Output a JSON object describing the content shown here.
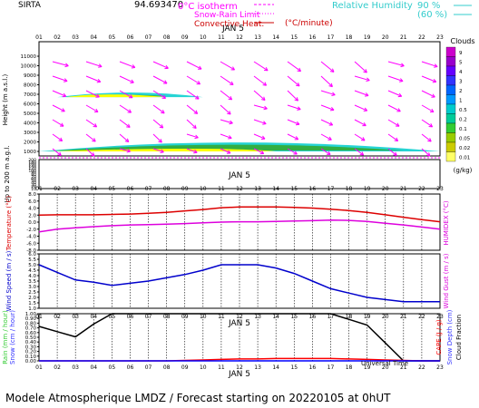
{
  "header": {
    "site": "SIRTA",
    "coord": "94.693470",
    "legend_0c": "0°C isotherm",
    "legend_snow": "Snow-Rain Limit",
    "legend_conv": "Convective Heat.",
    "legend_conv_unit": "(°C/minute)",
    "legend_rh": "Relative Humidity",
    "rh_90": "90 %",
    "rh_60": "(60 %)",
    "date": "JAN 5"
  },
  "hours": [
    "01",
    "02",
    "03",
    "04",
    "05",
    "06",
    "07",
    "08",
    "09",
    "10",
    "11",
    "12",
    "13",
    "14",
    "15",
    "16",
    "17",
    "18",
    "19",
    "20",
    "21",
    "22",
    "23"
  ],
  "panel1": {
    "ylabel": "Height (m a.s.l.)",
    "yticks": [
      "1000",
      "2000",
      "3000",
      "4000",
      "5000",
      "6000",
      "7000",
      "8000",
      "9000",
      "10000",
      "11000"
    ],
    "ylabel_low": "Up to 200 m a.g.l.",
    "yticks_low": [
      "10",
      "20",
      "30",
      "40",
      "50",
      "60",
      "70",
      "80",
      "90",
      "100",
      "120",
      "140",
      "160",
      "180",
      "200"
    ],
    "clouds_title": "Clouds",
    "clouds_unit": "(g/kg)",
    "clouds_levels": [
      "9",
      "5",
      "4",
      "3",
      "2",
      "1",
      "0.5",
      "0.2",
      "0.1",
      "0.05",
      "0.02",
      "0.01"
    ],
    "clouds_colors": [
      "#cc00cc",
      "#9900cc",
      "#6600ff",
      "#3333ff",
      "#0066ff",
      "#0099ff",
      "#00cccc",
      "#00cc99",
      "#33cc33",
      "#99cc00",
      "#cccc00",
      "#ffff66"
    ],
    "arrow_color": "#ff00ff"
  },
  "panel2": {
    "ylabel": "Temperature (°C)",
    "ylabel_right": "HUMIDEX (°C)",
    "yticks": [
      "-8.0",
      "-6.0",
      "-4.0",
      "-2.0",
      "0.0",
      "2.0",
      "4.0",
      "6.0",
      "8.0"
    ]
  },
  "panel3": {
    "ylabel": "Wind Speed (m / s)",
    "ylabel_right": "Wind Gust (m / s)",
    "yticks": [
      "1.0",
      "1.5",
      "2.0",
      "2.5",
      "3.0",
      "3.5",
      "4.0",
      "4.5",
      "5.0",
      "5.5",
      "6.0"
    ]
  },
  "panel4": {
    "ylabel_rain": "Rain (mm / hour)",
    "ylabel_snow": "Snow (cm / hour)",
    "ylabel_capc": "CAPE (J / g)",
    "ylabel_snowdepth": "Snow Depth (cm)",
    "ylabel_cloudfrac": "Cloud Fraction",
    "yticks": [
      "0.00",
      "0.10",
      "0.20",
      "0.30",
      "0.40",
      "0.50",
      "0.60",
      "0.70",
      "0.80",
      "0.90",
      "1.00"
    ],
    "xlabel": "Universal Time"
  },
  "footer": "Modele Atmospherique LMDZ / Forecast starting on 20220105 at 0hUT",
  "chart_data": [
    {
      "type": "heatmap",
      "title": "Clouds",
      "ylabel": "Height (m a.s.l.)",
      "x": [
        1,
        2,
        3,
        4,
        5,
        6,
        7,
        8,
        9,
        10,
        11,
        12,
        13,
        14,
        15,
        16,
        17,
        18,
        19,
        20,
        21,
        22,
        23
      ],
      "wind_arrows": "magenta, mostly toward lower-right (north-westerly flow)",
      "cloud_layers": [
        {
          "from_hour": 1,
          "to_hour": 23,
          "base_m": 1000,
          "top_m": 2500,
          "max_gkg": 0.2
        },
        {
          "from_hour": 2,
          "to_hour": 10,
          "base_m": 6700,
          "top_m": 7300,
          "max_gkg": 0.05
        }
      ]
    },
    {
      "type": "line",
      "x": [
        1,
        2,
        3,
        4,
        5,
        6,
        7,
        8,
        9,
        10,
        11,
        12,
        13,
        14,
        15,
        16,
        17,
        18,
        19,
        20,
        21,
        22,
        23
      ],
      "ylim": [
        -8,
        8
      ],
      "series": [
        {
          "color": "#dd0000",
          "values": [
            2.0,
            2.1,
            2.1,
            2.1,
            2.2,
            2.3,
            2.5,
            2.8,
            3.2,
            3.6,
            4.1,
            4.3,
            4.3,
            4.3,
            4.2,
            4.0,
            3.7,
            3.3,
            2.8,
            2.1,
            1.4,
            0.7,
            0.1
          ]
        },
        {
          "color": "#dd00dd",
          "values": [
            -2.8,
            -2.0,
            -1.6,
            -1.3,
            -1.0,
            -0.8,
            -0.7,
            -0.6,
            -0.4,
            -0.2,
            0.0,
            0.1,
            0.1,
            0.2,
            0.3,
            0.4,
            0.6,
            0.5,
            0.2,
            -0.3,
            -0.8,
            -1.4,
            -2.0
          ]
        }
      ]
    },
    {
      "type": "line",
      "x": [
        1,
        2,
        3,
        4,
        5,
        6,
        7,
        8,
        9,
        10,
        11,
        12,
        13,
        14,
        15,
        16,
        17,
        18,
        19,
        20,
        21,
        22,
        23
      ],
      "ylim": [
        1,
        6
      ],
      "series": [
        {
          "color": "#0000cc",
          "values": [
            5.0,
            4.3,
            3.6,
            3.4,
            3.1,
            3.3,
            3.5,
            3.8,
            4.1,
            4.5,
            5.0,
            5.0,
            5.0,
            4.7,
            4.2,
            3.5,
            2.8,
            2.4,
            2.0,
            1.8,
            1.6,
            1.6,
            1.6
          ]
        }
      ]
    },
    {
      "type": "line",
      "x": [
        1,
        2,
        3,
        4,
        5,
        6,
        7,
        8,
        9,
        10,
        11,
        12,
        13,
        14,
        15,
        16,
        17,
        18,
        19,
        20,
        21,
        22,
        23
      ],
      "ylim": [
        0,
        1
      ],
      "series": [
        {
          "color": "#000000",
          "values": [
            0.73,
            0.62,
            0.51,
            0.78,
            1.0,
            1.0,
            1.0,
            1.0,
            1.0,
            1.0,
            1.0,
            1.0,
            1.0,
            1.0,
            1.0,
            1.0,
            1.0,
            0.88,
            0.76,
            0.38,
            0.0,
            0.0,
            0.0
          ]
        },
        {
          "color": "#ff0000",
          "values": [
            0.0,
            0.0,
            0.0,
            0.0,
            0.0,
            0.0,
            0.0,
            0.0,
            0.01,
            0.02,
            0.03,
            0.04,
            0.04,
            0.05,
            0.05,
            0.05,
            0.05,
            0.04,
            0.03,
            0.02,
            0.01,
            0.0,
            0.0
          ]
        },
        {
          "color": "#0000ff",
          "values": [
            0.0,
            0.0,
            0.0,
            0.0,
            0.0,
            0.0,
            0.0,
            0.0,
            0.0,
            0.0,
            0.0,
            0.0,
            0.0,
            0.0,
            0.0,
            0.0,
            0.0,
            0.0,
            0.0,
            0.0,
            0.0,
            0.0,
            0.0
          ]
        }
      ]
    }
  ]
}
